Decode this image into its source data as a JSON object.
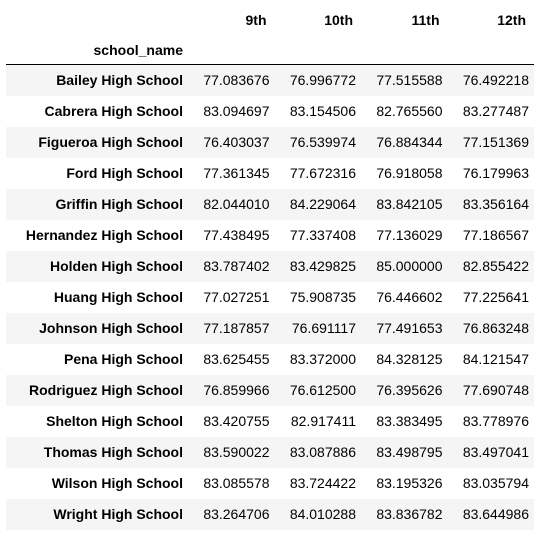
{
  "table": {
    "columns": [
      "9th",
      "10th",
      "11th",
      "12th"
    ],
    "index_name": "school_name",
    "rows": [
      {
        "school": "Bailey High School",
        "values": [
          "77.083676",
          "76.996772",
          "77.515588",
          "76.492218"
        ]
      },
      {
        "school": "Cabrera High School",
        "values": [
          "83.094697",
          "83.154506",
          "82.765560",
          "83.277487"
        ]
      },
      {
        "school": "Figueroa High School",
        "values": [
          "76.403037",
          "76.539974",
          "76.884344",
          "77.151369"
        ]
      },
      {
        "school": "Ford High School",
        "values": [
          "77.361345",
          "77.672316",
          "76.918058",
          "76.179963"
        ]
      },
      {
        "school": "Griffin High School",
        "values": [
          "82.044010",
          "84.229064",
          "83.842105",
          "83.356164"
        ]
      },
      {
        "school": "Hernandez High School",
        "values": [
          "77.438495",
          "77.337408",
          "77.136029",
          "77.186567"
        ]
      },
      {
        "school": "Holden High School",
        "values": [
          "83.787402",
          "83.429825",
          "85.000000",
          "82.855422"
        ]
      },
      {
        "school": "Huang High School",
        "values": [
          "77.027251",
          "75.908735",
          "76.446602",
          "77.225641"
        ]
      },
      {
        "school": "Johnson High School",
        "values": [
          "77.187857",
          "76.691117",
          "77.491653",
          "76.863248"
        ]
      },
      {
        "school": "Pena High School",
        "values": [
          "83.625455",
          "83.372000",
          "84.328125",
          "84.121547"
        ]
      },
      {
        "school": "Rodriguez High School",
        "values": [
          "76.859966",
          "76.612500",
          "76.395626",
          "77.690748"
        ]
      },
      {
        "school": "Shelton High School",
        "values": [
          "83.420755",
          "82.917411",
          "83.383495",
          "83.778976"
        ]
      },
      {
        "school": "Thomas High School",
        "values": [
          "83.590022",
          "83.087886",
          "83.498795",
          "83.497041"
        ]
      },
      {
        "school": "Wilson High School",
        "values": [
          "83.085578",
          "83.724422",
          "83.195326",
          "83.035794"
        ]
      },
      {
        "school": "Wright High School",
        "values": [
          "83.264706",
          "84.010288",
          "83.836782",
          "83.644986"
        ]
      }
    ]
  }
}
